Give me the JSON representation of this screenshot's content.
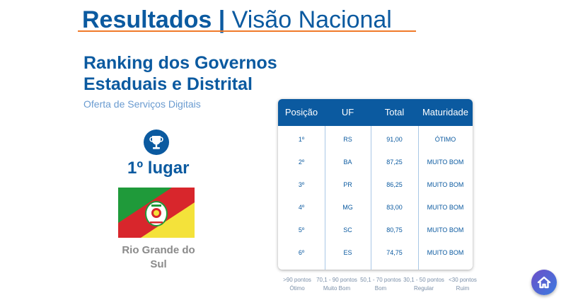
{
  "header": {
    "title_bold": "Resultados |",
    "title_light": " Visão Nacional"
  },
  "ranking": {
    "title_line1": "Ranking dos Governos",
    "title_line2": "Estaduais e Distrital",
    "subtitle": "Oferta de Serviços Digitais"
  },
  "winner": {
    "icon": "trophy-icon",
    "place": "1º lugar",
    "state_line1": "Rio Grande do",
    "state_line2": "Sul"
  },
  "table": {
    "headers": [
      "Posição",
      "UF",
      "Total",
      "Maturidade"
    ],
    "rows": [
      [
        "1º",
        "RS",
        "91,00",
        "ÓTIMO"
      ],
      [
        "2º",
        "BA",
        "87,25",
        "MUITO BOM"
      ],
      [
        "3º",
        "PR",
        "86,25",
        "MUITO BOM"
      ],
      [
        "4º",
        "MG",
        "83,00",
        "MUITO BOM"
      ],
      [
        "5º",
        "SC",
        "80,75",
        "MUITO BOM"
      ],
      [
        "6º",
        "ES",
        "74,75",
        "MUITO BOM"
      ]
    ]
  },
  "legend": [
    {
      "range": ">90 pontos",
      "label": "Ótimo"
    },
    {
      "range": "70,1 - 90 pontos",
      "label": "Muito Bom"
    },
    {
      "range": "50,1 - 70 pontos",
      "label": "Bom"
    },
    {
      "range": "30,1 - 50 pontos",
      "label": "Regular"
    },
    {
      "range": "<30 pontos",
      "label": "Ruim"
    }
  ],
  "colors": {
    "primary": "#0b5aa0",
    "accent": "#f07a2a",
    "flag_green": "#1f9a3a",
    "flag_red": "#d8262c",
    "flag_yellow": "#f4e23a"
  },
  "home": {
    "icon": "home-icon"
  }
}
